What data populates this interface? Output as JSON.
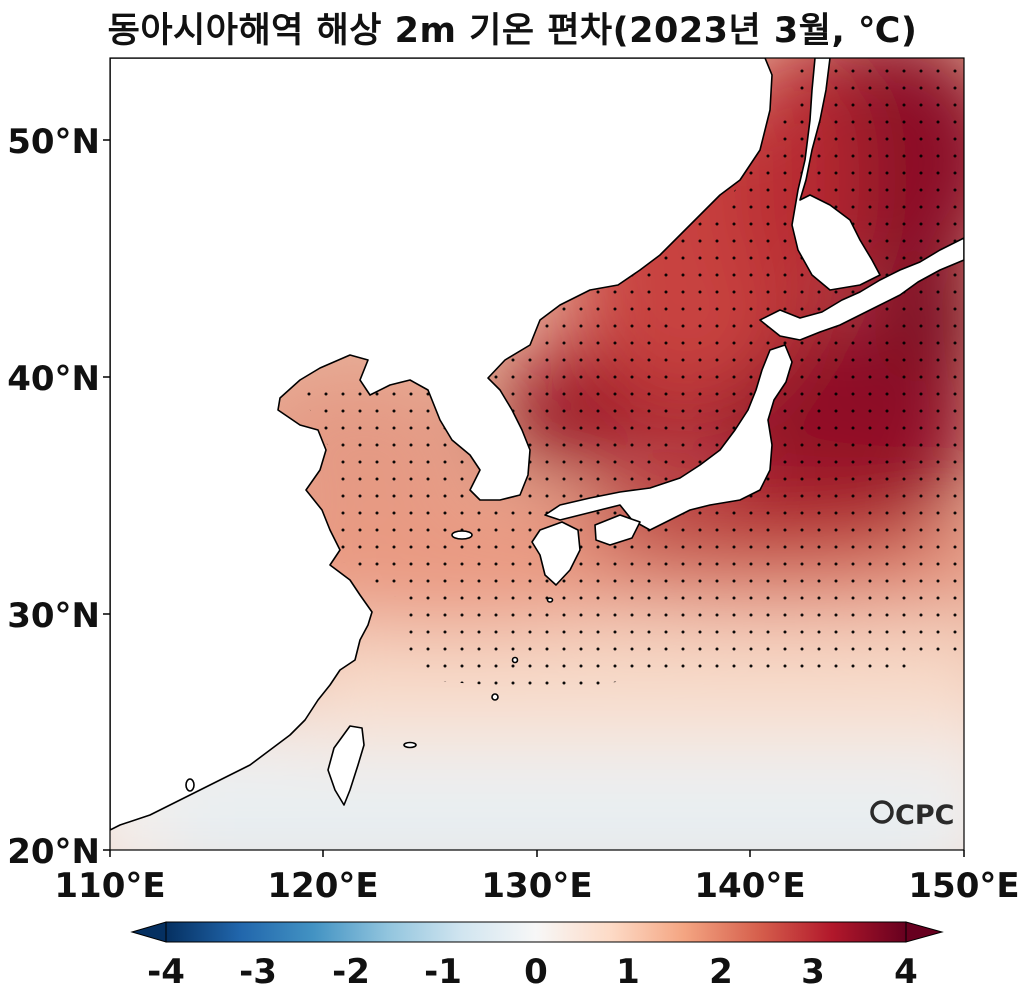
{
  "title": "동아시아해역 해상 2m 기온 편차(2023년 3월, ℃)",
  "map": {
    "lon_range": [
      110,
      150
    ],
    "lat_range": [
      20,
      53.5
    ],
    "x_ticks": [
      "110°E",
      "120°E",
      "130°E",
      "140°E",
      "150°E"
    ],
    "y_ticks": [
      "20°N",
      "30°N",
      "40°N",
      "50°N"
    ],
    "stippling": "dots mark significant anomaly",
    "watermark": "OCPC"
  },
  "colorbar": {
    "ticks": [
      "-4",
      "-3",
      "-2",
      "-1",
      "0",
      "1",
      "2",
      "3",
      "4"
    ],
    "colormap": [
      "#053061",
      "#2166ac",
      "#4393c3",
      "#92c5de",
      "#d1e5f0",
      "#f7f7f7",
      "#fddbc7",
      "#f4a582",
      "#d6604d",
      "#b2182b",
      "#67001f"
    ],
    "extend": "both"
  },
  "colors": {
    "land": "#ffffff",
    "coast": "#000000"
  }
}
